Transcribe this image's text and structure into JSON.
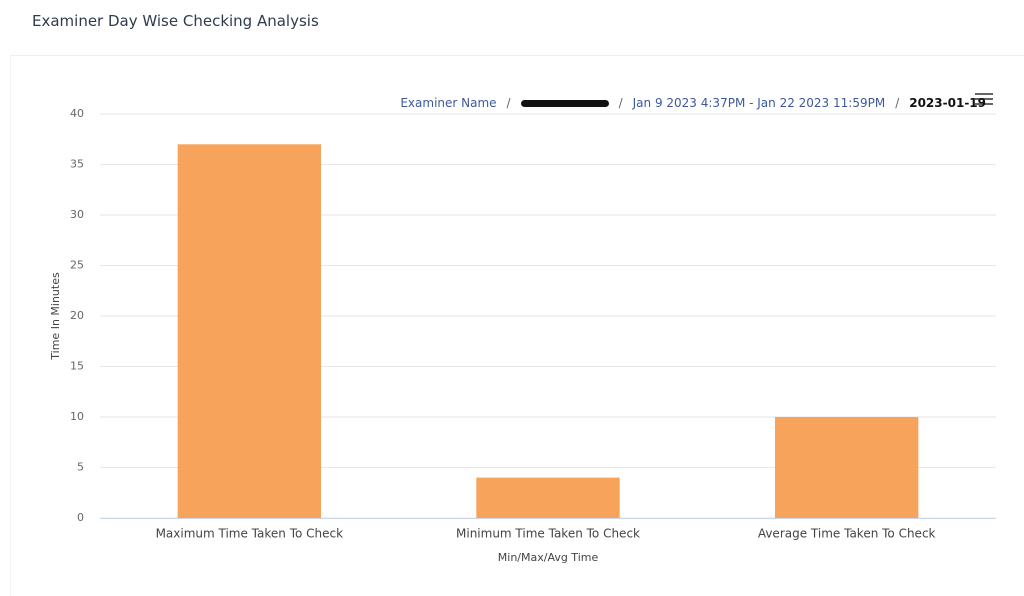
{
  "header": {
    "title": "Examiner Day Wise Checking Analysis"
  },
  "breadcrumb": {
    "separator": "/",
    "items": [
      "Examiner Name",
      "Jan 9 2023 4:37PM - Jan 22 2023 11:59PM",
      "2023-01-19"
    ]
  },
  "chart_data": {
    "type": "bar",
    "categories": [
      "Maximum Time Taken To Check",
      "Minimum Time Taken To Check",
      "Average Time Taken To Check"
    ],
    "values": [
      37,
      4,
      10
    ],
    "color": "#f7a35c",
    "y_label": "Time In Minutes",
    "x_label": "Min/Max/Avg Time",
    "ylim": [
      0,
      40
    ],
    "yticks": [
      0,
      5,
      10,
      15,
      20,
      25,
      30,
      35,
      40
    ],
    "grid": true
  }
}
